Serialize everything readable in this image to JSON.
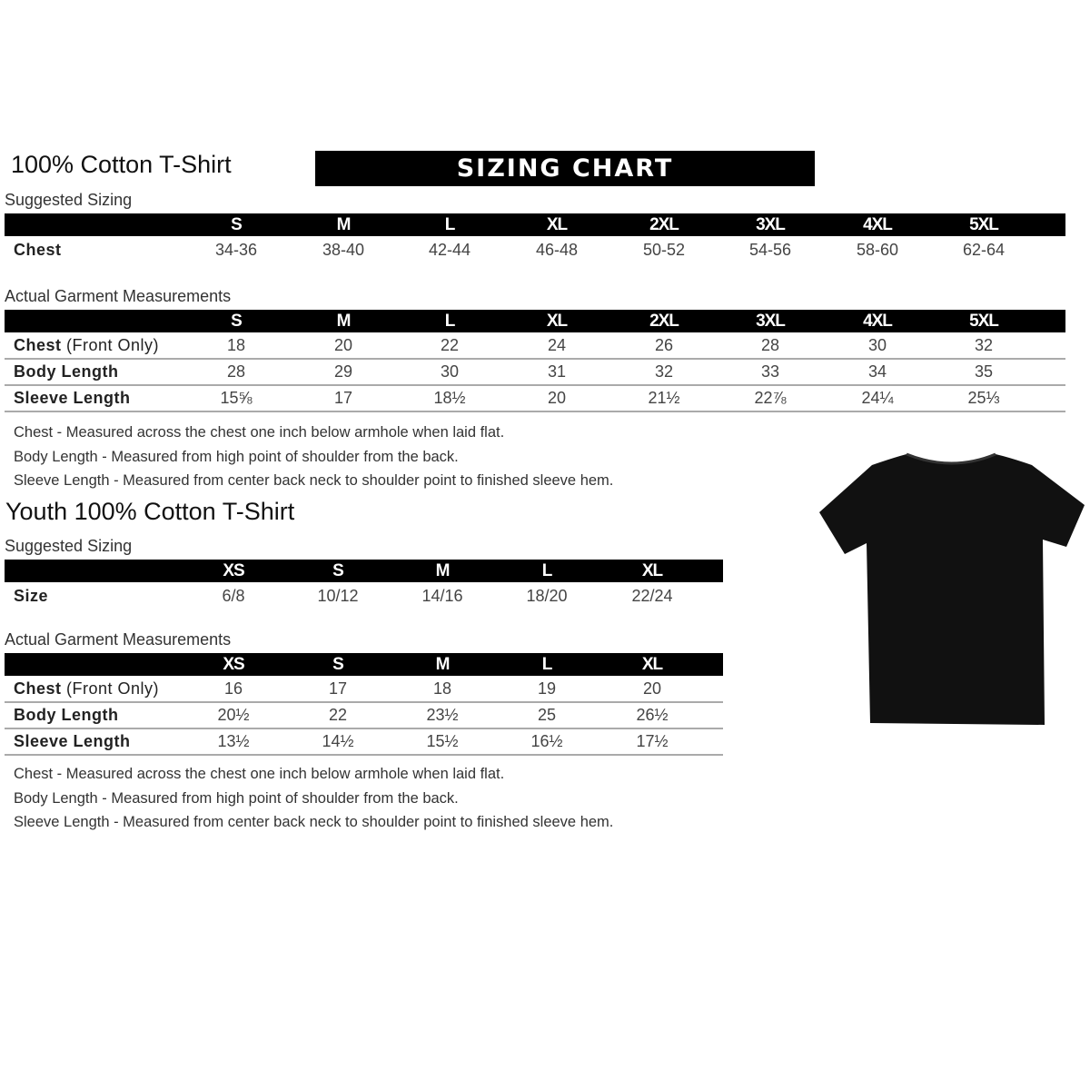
{
  "adult": {
    "title": "100% Cotton T-Shirt",
    "banner": "SIZING CHART",
    "suggested_label": "Suggested Sizing",
    "sizes": [
      "S",
      "M",
      "L",
      "XL",
      "2XL",
      "3XL",
      "4XL",
      "5XL"
    ],
    "suggested_rows": [
      {
        "label": "Chest",
        "values": [
          "34-36",
          "38-40",
          "42-44",
          "46-48",
          "50-52",
          "54-56",
          "58-60",
          "62-64"
        ]
      }
    ],
    "actual_label": "Actual Garment Measurements",
    "actual_rows": [
      {
        "label": "Chest",
        "suffix": " (Front Only)",
        "values": [
          "18",
          "20",
          "22",
          "24",
          "26",
          "28",
          "30",
          "32"
        ]
      },
      {
        "label": "Body Length",
        "suffix": "",
        "values": [
          "28",
          "29",
          "30",
          "31",
          "32",
          "33",
          "34",
          "35"
        ]
      },
      {
        "label": "Sleeve Length",
        "suffix": "",
        "values": [
          "15⅝",
          "17",
          "18½",
          "20",
          "21½",
          "22⅞",
          "24¼",
          "25⅓"
        ]
      }
    ],
    "notes": [
      "Chest - Measured across the chest one inch below armhole when laid flat.",
      "Body Length - Measured from high point of shoulder from the back.",
      "Sleeve Length - Measured from center back neck to shoulder point to finished sleeve hem."
    ]
  },
  "youth": {
    "title": "Youth 100% Cotton T-Shirt",
    "suggested_label": "Suggested Sizing",
    "sizes": [
      "XS",
      "S",
      "M",
      "L",
      "XL"
    ],
    "suggested_rows": [
      {
        "label": "Size",
        "values": [
          "6/8",
          "10/12",
          "14/16",
          "18/20",
          "22/24"
        ]
      }
    ],
    "actual_label": "Actual Garment Measurements",
    "actual_rows": [
      {
        "label": "Chest",
        "suffix": " (Front Only)",
        "values": [
          "16",
          "17",
          "18",
          "19",
          "20"
        ]
      },
      {
        "label": "Body Length",
        "suffix": "",
        "values": [
          "20½",
          "22",
          "23½",
          "25",
          "26½"
        ]
      },
      {
        "label": "Sleeve Length",
        "suffix": "",
        "values": [
          "13½",
          "14½",
          "15½",
          "16½",
          "17½"
        ]
      }
    ],
    "notes": [
      "Chest - Measured across the chest one inch below armhole when laid flat.",
      "Body Length - Measured from high point of shoulder from the back.",
      "Sleeve Length - Measured from center back neck to shoulder point to finished sleeve hem."
    ]
  },
  "tshirt_color": "#111111"
}
